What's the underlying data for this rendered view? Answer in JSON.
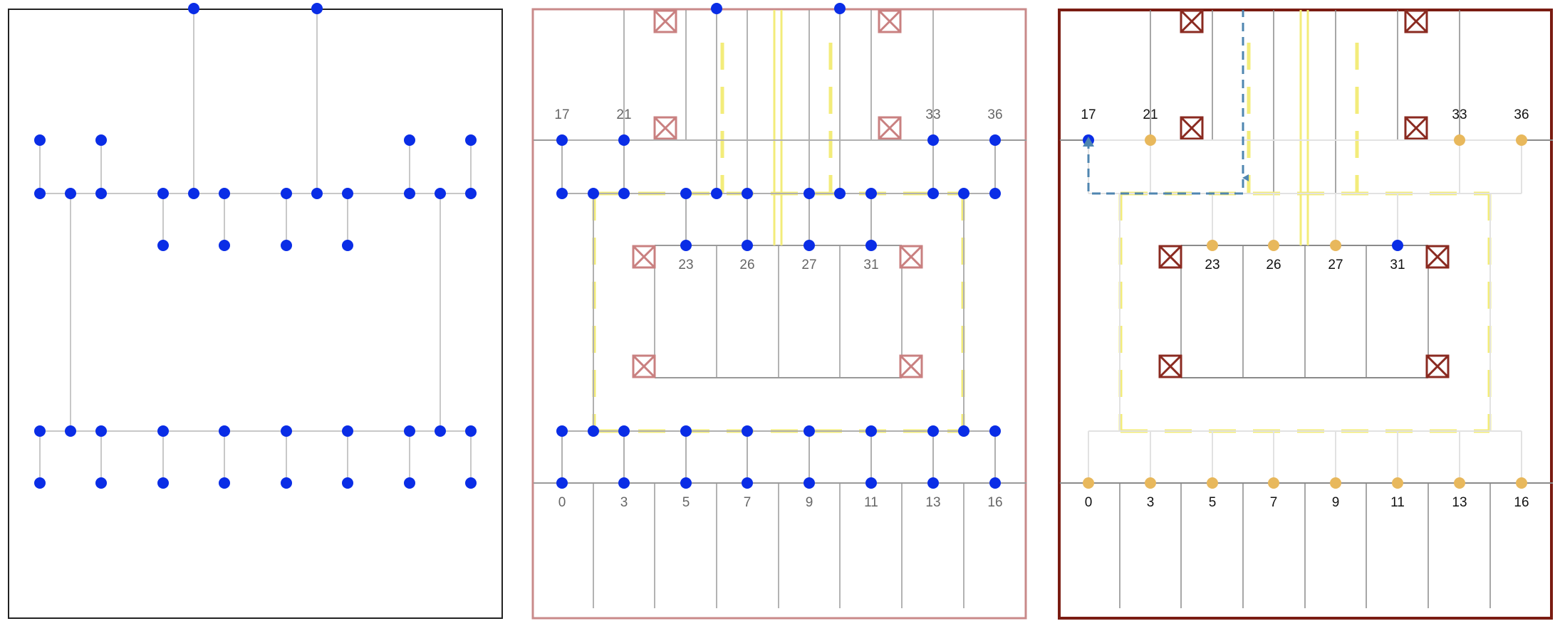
{
  "panels": [
    {
      "id": "graph",
      "labels": []
    },
    {
      "id": "layout",
      "labels": [
        "17",
        "21",
        "33",
        "36",
        "23",
        "26",
        "27",
        "31",
        "0",
        "3",
        "5",
        "7",
        "9",
        "11",
        "13",
        "16"
      ]
    },
    {
      "id": "path",
      "labels": [
        "17",
        "21",
        "33",
        "36",
        "23",
        "26",
        "27",
        "31",
        "0",
        "3",
        "5",
        "7",
        "9",
        "11",
        "13",
        "16"
      ]
    }
  ],
  "colors": {
    "node_blue": "#0a2de6",
    "node_orange": "#e8b85c",
    "edge_gray": "#c8c8c8",
    "wall_gray": "#8a8a8a",
    "marker_light": "#c98080",
    "marker_dark": "#8a2a20",
    "dash_yellow": "#f3ec7a",
    "path_blue": "#4f86b0",
    "frame_light": "#c98a8a",
    "frame_dark": "#7a1c12"
  },
  "icons": {
    "obstacle": "crossed-box-icon",
    "node": "circle-node-icon",
    "path": "dashed-arrow-icon"
  }
}
